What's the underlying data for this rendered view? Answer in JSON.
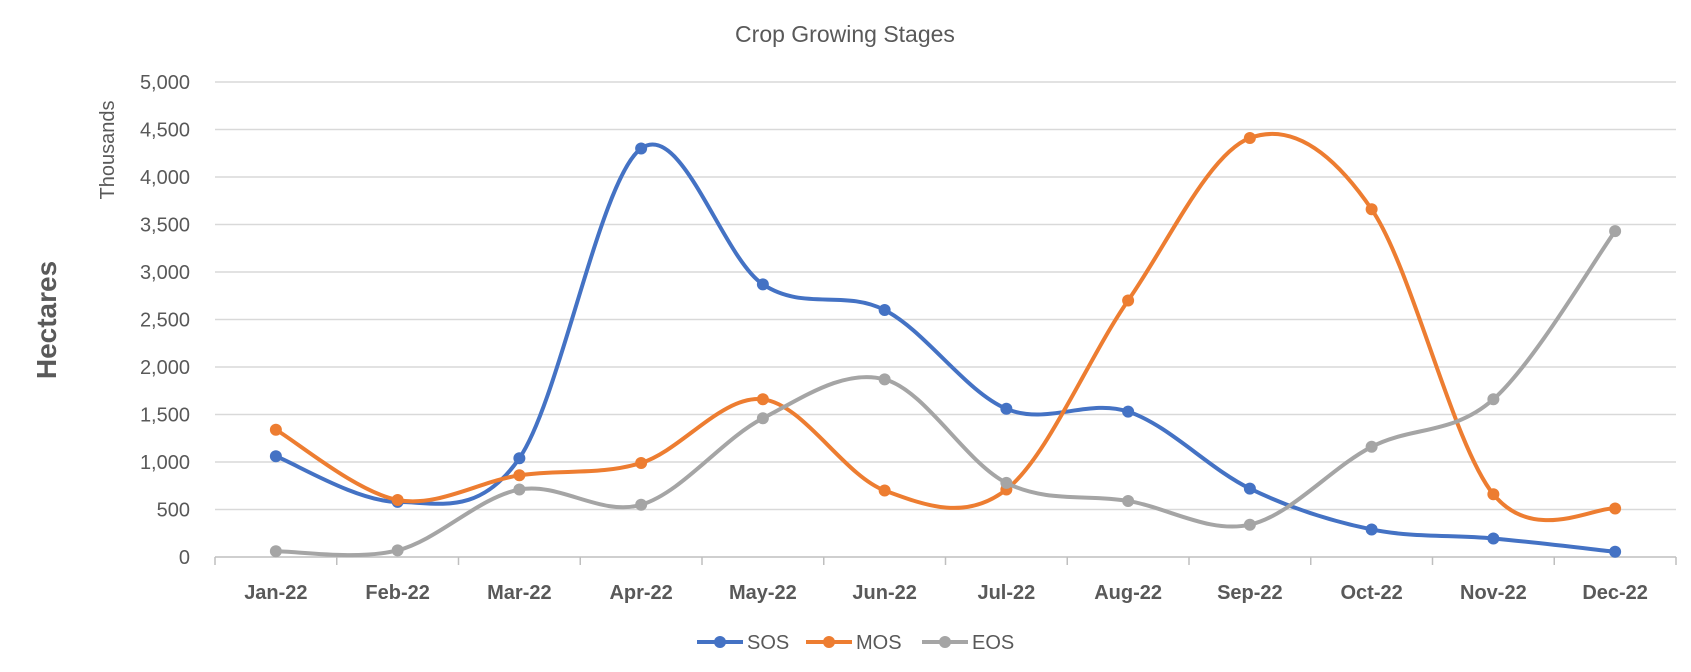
{
  "chart_data": {
    "type": "line",
    "title": "Crop Growing Stages",
    "ylabel": "Hectares",
    "y_units": "Thousands",
    "categories": [
      "Jan-22",
      "Feb-22",
      "Mar-22",
      "Apr-22",
      "May-22",
      "Jun-22",
      "Jul-22",
      "Aug-22",
      "Sep-22",
      "Oct-22",
      "Nov-22",
      "Dec-22"
    ],
    "ylim": [
      0,
      5000
    ],
    "yticks": [
      0,
      500,
      1000,
      1500,
      2000,
      2500,
      3000,
      3500,
      4000,
      4500,
      5000
    ],
    "ytick_labels": [
      "0",
      "500",
      "1,000",
      "1,500",
      "2,000",
      "2,500",
      "3,000",
      "3,500",
      "4,000",
      "4,500",
      "5,000"
    ],
    "grid": true,
    "smooth": true,
    "legend_position": "bottom",
    "series": [
      {
        "name": "SOS",
        "color": "#4472C4",
        "values": [
          1060,
          580,
          1040,
          4300,
          2870,
          2600,
          1560,
          1530,
          720,
          290,
          195,
          55
        ]
      },
      {
        "name": "MOS",
        "color": "#ED7D31",
        "values": [
          1340,
          600,
          860,
          990,
          1660,
          700,
          710,
          2700,
          4410,
          3660,
          660,
          510
        ]
      },
      {
        "name": "EOS",
        "color": "#A5A5A5",
        "values": [
          60,
          70,
          710,
          550,
          1460,
          1870,
          780,
          590,
          340,
          1160,
          1660,
          3430
        ]
      }
    ]
  }
}
